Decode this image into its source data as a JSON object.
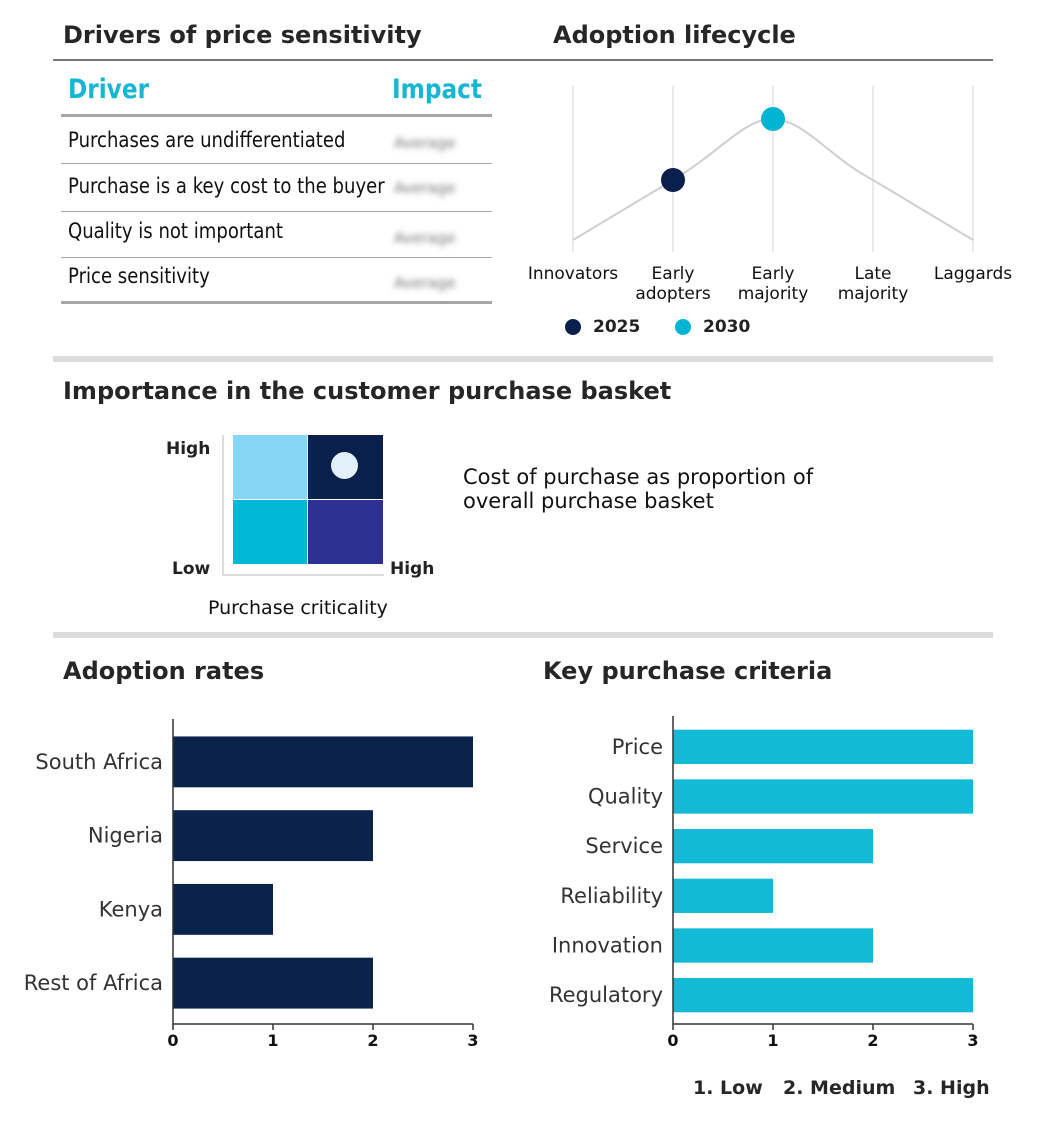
{
  "drivers": {
    "title": "Drivers of price sensitivity",
    "col_driver": "Driver",
    "col_impact": "Impact",
    "rows": [
      {
        "driver": "Purchases are undifferentiated",
        "impact": "Average"
      },
      {
        "driver": "Purchase is a key cost to the buyer",
        "impact": "Average"
      },
      {
        "driver": "Quality is not important",
        "impact": "Average"
      },
      {
        "driver": "Price sensitivity",
        "impact": "Average"
      }
    ]
  },
  "lifecycle": {
    "title": "Adoption lifecycle",
    "stages": [
      "Innovators",
      "Early\nadopters",
      "Early\nmajority",
      "Late\nmajority",
      "Laggards"
    ],
    "legend": [
      {
        "label": "2025",
        "color": "#0b1f4d",
        "stage_index": 1
      },
      {
        "label": "2030",
        "color": "#00b4d2",
        "stage_index": 2
      }
    ]
  },
  "basket": {
    "title": "Importance in the customer purchase basket",
    "y_high": "High",
    "y_low": "Low",
    "x_high": "High",
    "x_label": "Purchase criticality",
    "description": "Cost of purchase as proportion of overall purchase basket",
    "quadrant_colors": {
      "top_left": "#87d6f7",
      "top_right": "#0b1f4d",
      "bottom_left": "#00b8d4",
      "bottom_right": "#2e3192"
    },
    "marker_color": "#e1f0fb",
    "marker_quadrant": "top-right"
  },
  "chart_data": [
    {
      "type": "bar",
      "orientation": "horizontal",
      "title": "Adoption rates",
      "categories": [
        "South Africa",
        "Nigeria",
        "Kenya",
        "Rest of Africa"
      ],
      "values": [
        3,
        2,
        1,
        2
      ],
      "xlim": [
        0,
        3
      ],
      "xticks": [
        0,
        1,
        2,
        3
      ],
      "color": "#0b234a"
    },
    {
      "type": "bar",
      "orientation": "horizontal",
      "title": "Key purchase criteria",
      "categories": [
        "Price",
        "Quality",
        "Service",
        "Reliability",
        "Innovation",
        "Regulatory"
      ],
      "values": [
        3,
        3,
        2,
        1,
        2,
        3
      ],
      "xlim": [
        0,
        3
      ],
      "xticks": [
        0,
        1,
        2,
        3
      ],
      "color": "#12bad6"
    }
  ],
  "scale_legend": [
    "1. Low",
    "2. Medium",
    "3. High"
  ]
}
